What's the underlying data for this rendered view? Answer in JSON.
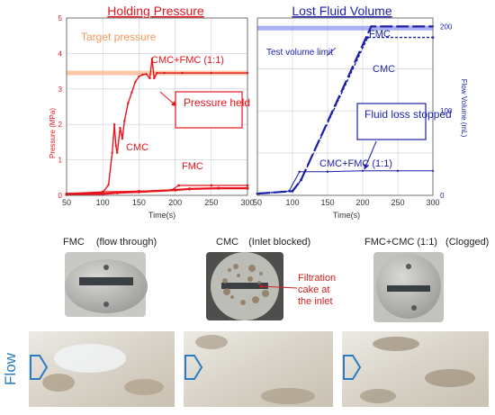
{
  "colors": {
    "pressure": "#e8141c",
    "volume": "#1a1fa8",
    "target": "#f7b58f",
    "limit": "#8e95ee",
    "flow_arrow": "#2b7bc4",
    "disc": "#b9b9b6",
    "slot": "#3a3f44"
  },
  "chart_data": [
    {
      "type": "line",
      "title": "Holding Pressure",
      "xlabel": "Time(s)",
      "ylabel": "Pressure (MPa)",
      "xlim": [
        50,
        300
      ],
      "ylim": [
        0,
        5
      ],
      "x_ticks": [
        "50",
        "100",
        "150",
        "200",
        "250",
        "300"
      ],
      "y_ticks": [
        "0",
        "1",
        "2",
        "3",
        "4",
        "5"
      ],
      "grid": true,
      "reference_line": {
        "label": "Target pressure",
        "y": 3.45
      },
      "series": [
        {
          "name": "CMC+FMC (1:1)",
          "x": [
            50,
            80,
            100,
            108,
            113,
            116,
            118,
            120,
            124,
            127,
            130,
            135,
            140,
            145,
            150,
            155,
            160,
            165,
            168,
            171,
            175,
            185,
            210,
            250,
            300
          ],
          "y": [
            0.05,
            0.05,
            0.08,
            0.3,
            1.2,
            2.0,
            1.4,
            1.2,
            1.9,
            1.6,
            2.1,
            2.6,
            2.9,
            3.2,
            3.35,
            3.4,
            3.42,
            3.3,
            3.85,
            3.3,
            3.45,
            3.45,
            3.45,
            3.45,
            3.45
          ]
        },
        {
          "name": "CMC",
          "x": [
            50,
            100,
            120,
            150,
            200,
            220,
            260,
            300
          ],
          "y": [
            0.02,
            0.04,
            0.07,
            0.1,
            0.15,
            0.18,
            0.2,
            0.2
          ]
        },
        {
          "name": "FMC",
          "x": [
            50,
            100,
            150,
            195,
            205,
            250,
            300
          ],
          "y": [
            0.05,
            0.1,
            0.12,
            0.15,
            0.28,
            0.28,
            0.28
          ]
        }
      ],
      "annotations": [
        "Pressure held"
      ]
    },
    {
      "type": "line",
      "title": "Lost Fluid Volume",
      "xlabel": "Time(s)",
      "ylabel": "Flow Volume (mL)",
      "xlim": [
        50,
        300
      ],
      "ylim": [
        0,
        210
      ],
      "x_ticks": [
        "50",
        "100",
        "150",
        "200",
        "250",
        "300"
      ],
      "y_ticks": [
        "0",
        "100",
        "200"
      ],
      "grid": true,
      "reference_line": {
        "label": "Test volume limit",
        "y": 198
      },
      "series": [
        {
          "name": "FMC",
          "x": [
            50,
            100,
            112,
            212,
            300
          ],
          "y": [
            2,
            5,
            18,
            200,
            200
          ]
        },
        {
          "name": "CMC",
          "x": [
            50,
            100,
            112,
            207,
            300
          ],
          "y": [
            2,
            5,
            18,
            187,
            187
          ]
        },
        {
          "name": "CMC+FMC (1:1)",
          "x": [
            50,
            95,
            110,
            150,
            200,
            250,
            300
          ],
          "y": [
            2,
            5,
            28,
            28,
            29,
            29,
            29
          ]
        }
      ],
      "annotations": [
        "Fluid loss stopped"
      ]
    }
  ],
  "photos": {
    "panels": [
      {
        "label": "FMC",
        "note": "(flow through)"
      },
      {
        "label": "CMC",
        "note": "(Inlet blocked)"
      },
      {
        "label": "FMC+CMC (1:1)",
        "note": "(Clogged)"
      }
    ],
    "callout": [
      "Filtration",
      "cake at",
      "the inlet"
    ],
    "flow_label": "Flow"
  }
}
